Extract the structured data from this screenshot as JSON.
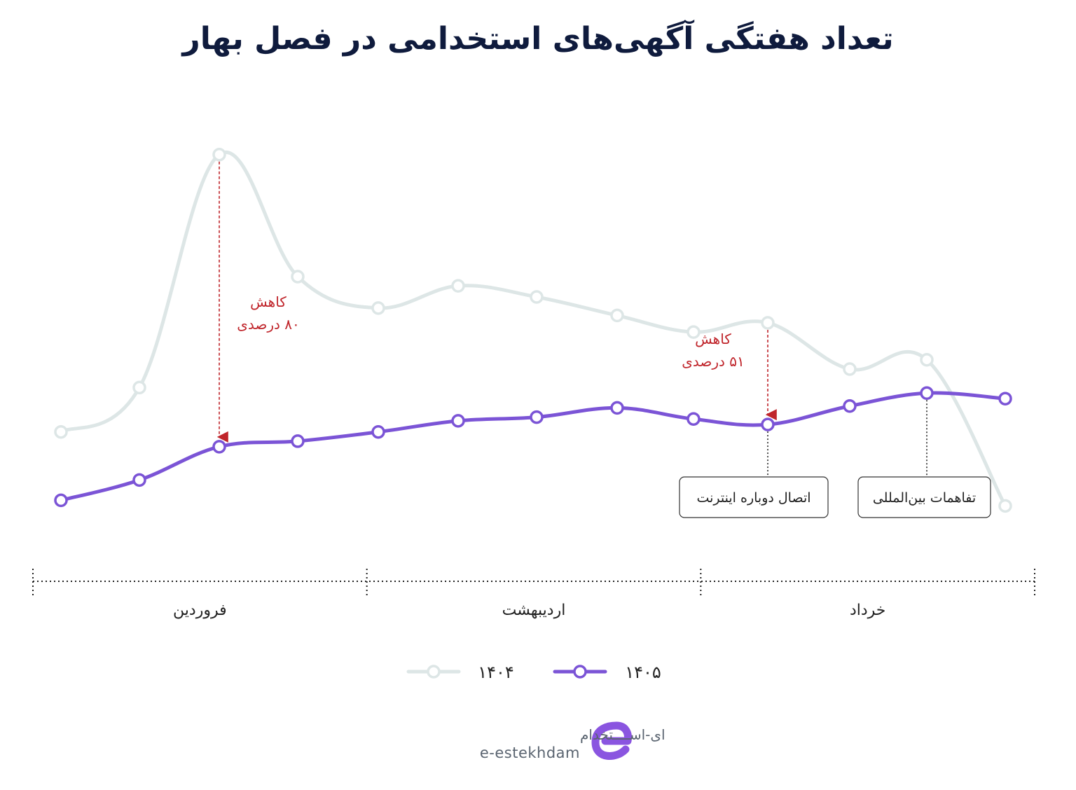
{
  "title": "تعداد هفتگی آگهی‌های استخدامی در فصل بهار",
  "chart_data": {
    "type": "line",
    "x": [
      1,
      2,
      3,
      4,
      5,
      6,
      7,
      8,
      9,
      10,
      11,
      12,
      13,
      14
    ],
    "series": [
      {
        "name": "۱۴۰۴",
        "color": "#dde6e6",
        "values": [
          5.2,
          7.6,
          20.2,
          13.6,
          11.9,
          13.1,
          12.5,
          11.5,
          10.6,
          11.1,
          8.6,
          9.1,
          null,
          1.2
        ]
      },
      {
        "name": "۱۴۰۵",
        "color": "#7b54d6",
        "values": [
          1.5,
          2.6,
          4.4,
          4.7,
          5.2,
          5.8,
          6.0,
          6.5,
          5.9,
          5.6,
          6.6,
          7.3,
          7.0,
          null
        ]
      }
    ],
    "months": [
      "فروردین",
      "اردیبهشت",
      "خرداد"
    ],
    "annotations": [
      {
        "line1": "کاهش",
        "line2": "۸۰ درصدی",
        "week": 3
      },
      {
        "line1": "کاهش",
        "line2": "۵۱ درصدی",
        "week": 10
      }
    ],
    "events": [
      {
        "label": "اتصال دوباره اینترنت",
        "week": 10
      },
      {
        "label": "تفاهمات بین‌المللی",
        "week": 12
      }
    ],
    "legend_position": "bottom",
    "grid": false
  },
  "logo": {
    "fa": "ای-اســــتخدام",
    "en": "e-estekhdam",
    "color": "#8a55e0"
  }
}
